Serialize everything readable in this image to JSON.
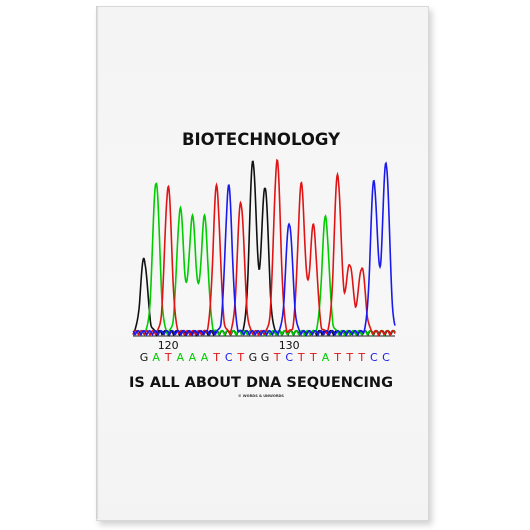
{
  "card": {
    "title_top": "BIOTECHNOLOGY",
    "title_bottom": "IS ALL ABOUT DNA SEQUENCING",
    "copyright": "© WORDS & UNWORDS"
  },
  "chromatogram": {
    "position_labels": [
      {
        "text": "120",
        "base_index": 2
      },
      {
        "text": "130",
        "base_index": 12
      }
    ],
    "bases": [
      "G",
      "A",
      "T",
      "A",
      "A",
      "A",
      "T",
      "C",
      "T",
      "G",
      "G",
      "T",
      "C",
      "T",
      "T",
      "A",
      "T",
      "T",
      "T",
      "C",
      "C"
    ],
    "base_colors": {
      "G": "#111111",
      "A": "#00cc00",
      "T": "#e01414",
      "C": "#1a1aee"
    },
    "peaks": [
      {
        "i": 0,
        "h": 0.43,
        "b": "G"
      },
      {
        "i": 1,
        "h": 0.88,
        "b": "A"
      },
      {
        "i": 2,
        "h": 0.85,
        "b": "T"
      },
      {
        "i": 3,
        "h": 0.72,
        "b": "A"
      },
      {
        "i": 4,
        "h": 0.67,
        "b": "A"
      },
      {
        "i": 5,
        "h": 0.67,
        "b": "A"
      },
      {
        "i": 6,
        "h": 0.85,
        "b": "T"
      },
      {
        "i": 7,
        "h": 0.85,
        "b": "C"
      },
      {
        "i": 8,
        "h": 0.76,
        "b": "T"
      },
      {
        "i": 9,
        "h": 1.0,
        "b": "G"
      },
      {
        "i": 10,
        "h": 0.85,
        "b": "G"
      },
      {
        "i": 11,
        "h": 1.0,
        "b": "T"
      },
      {
        "i": 12,
        "h": 0.64,
        "b": "C"
      },
      {
        "i": 13,
        "h": 0.86,
        "b": "T"
      },
      {
        "i": 14,
        "h": 0.62,
        "b": "T"
      },
      {
        "i": 15,
        "h": 0.67,
        "b": "A"
      },
      {
        "i": 16,
        "h": 0.92,
        "b": "T"
      },
      {
        "i": 17,
        "h": 0.4,
        "b": "T"
      },
      {
        "i": 18,
        "h": 0.38,
        "b": "T"
      },
      {
        "i": 19,
        "h": 0.88,
        "b": "C"
      },
      {
        "i": 20,
        "h": 0.99,
        "b": "C"
      }
    ]
  }
}
